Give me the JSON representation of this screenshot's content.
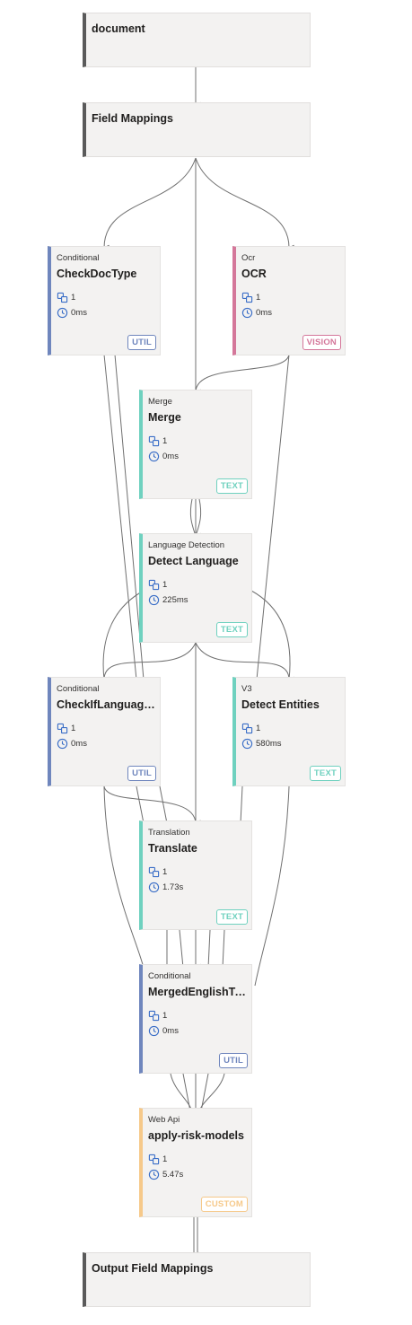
{
  "colors": {
    "util": "#6f86bd",
    "vision": "#d4779a",
    "text": "#6fd1bf",
    "custom": "#f6c98a",
    "edge": "#707070"
  },
  "icons": {
    "instances": "copy-icon",
    "duration": "clock-icon"
  },
  "io_nodes": {
    "document": "document",
    "field_mappings": "Field Mappings",
    "output_field_mappings": "Output Field Mappings"
  },
  "nodes": {
    "checkdoctype": {
      "type": "Conditional",
      "title": "CheckDocType",
      "count": "1",
      "duration": "0ms",
      "badge": "UTIL"
    },
    "ocr": {
      "type": "Ocr",
      "title": "OCR",
      "count": "1",
      "duration": "0ms",
      "badge": "VISION"
    },
    "merge": {
      "type": "Merge",
      "title": "Merge",
      "count": "1",
      "duration": "0ms",
      "badge": "TEXT"
    },
    "detect_language": {
      "type": "Language Detection",
      "title": "Detect Language",
      "count": "1",
      "duration": "225ms",
      "badge": "TEXT"
    },
    "checkiflanguage": {
      "type": "Conditional",
      "title": "CheckIfLanguageIs...",
      "count": "1",
      "duration": "0ms",
      "badge": "UTIL"
    },
    "detect_entities": {
      "type": "V3",
      "title": "Detect Entities",
      "count": "1",
      "duration": "580ms",
      "badge": "TEXT"
    },
    "translate": {
      "type": "Translation",
      "title": "Translate",
      "count": "1",
      "duration": "1.73s",
      "badge": "TEXT"
    },
    "mergedenglish": {
      "type": "Conditional",
      "title": "MergedEnglishText",
      "count": "1",
      "duration": "0ms",
      "badge": "UTIL"
    },
    "apply_risk": {
      "type": "Web Api",
      "title": "apply-risk-models",
      "count": "1",
      "duration": "5.47s",
      "badge": "CUSTOM"
    }
  }
}
